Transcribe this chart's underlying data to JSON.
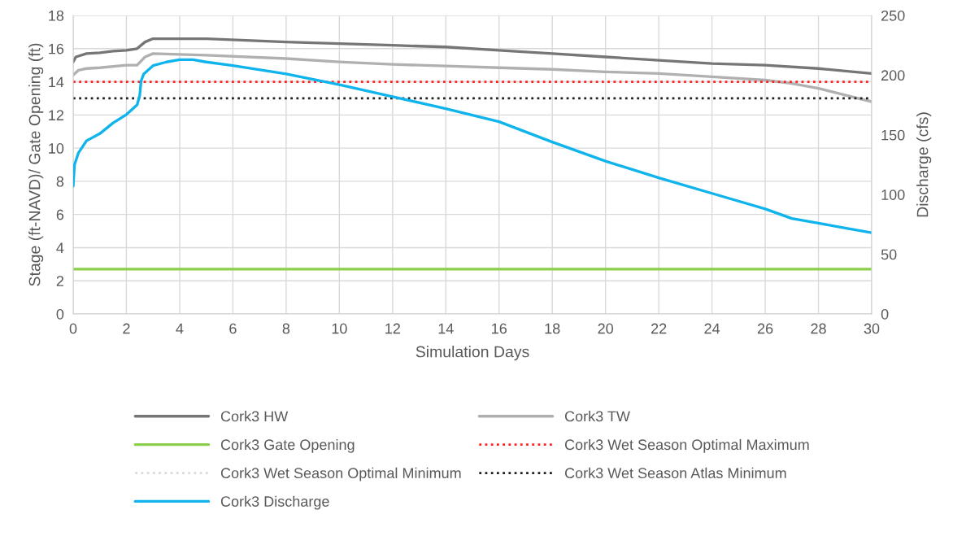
{
  "chart_data": {
    "type": "line",
    "xlabel": "Simulation Days",
    "ylabel": "Stage (ft-NAVD)/ Gate Opening (ft)",
    "y2label": "Discharge (cfs)",
    "xlim": [
      0,
      30
    ],
    "xticks": [
      0,
      2,
      4,
      6,
      8,
      10,
      12,
      14,
      16,
      18,
      20,
      22,
      24,
      26,
      28,
      30
    ],
    "ylim": [
      0,
      18
    ],
    "yticks": [
      0,
      2,
      4,
      6,
      8,
      10,
      12,
      14,
      16,
      18
    ],
    "y2lim": [
      0,
      250
    ],
    "y2ticks": [
      0,
      50,
      100,
      150,
      200,
      250
    ],
    "grid": true,
    "legend": "bottom",
    "marker": "none",
    "series": [
      {
        "name": "Cork3 HW",
        "color": "#767676",
        "line_style": "solid",
        "x": [
          0,
          0.1,
          0.5,
          1,
          1.5,
          2,
          2.4,
          2.7,
          3,
          5,
          8,
          10,
          12,
          14,
          16,
          18,
          20,
          22,
          24,
          26,
          28,
          30
        ],
        "values": [
          15.2,
          15.5,
          15.7,
          15.75,
          15.85,
          15.9,
          16.0,
          16.4,
          16.6,
          16.6,
          16.4,
          16.3,
          16.2,
          16.1,
          15.9,
          15.7,
          15.5,
          15.3,
          15.1,
          15.0,
          14.8,
          14.5
        ]
      },
      {
        "name": "Cork3 TW",
        "color": "#b0b0b0",
        "line_style": "solid",
        "x": [
          0,
          0.2,
          0.5,
          1,
          2,
          2.4,
          2.7,
          3,
          5,
          8,
          10,
          12,
          14,
          16,
          18,
          20,
          22,
          24,
          26,
          27,
          28,
          29,
          30
        ],
        "values": [
          14.4,
          14.7,
          14.8,
          14.85,
          15.0,
          15.0,
          15.5,
          15.7,
          15.6,
          15.4,
          15.2,
          15.05,
          14.95,
          14.85,
          14.75,
          14.6,
          14.5,
          14.3,
          14.1,
          13.9,
          13.6,
          13.2,
          12.8
        ]
      },
      {
        "name": "Cork3 Gate Opening",
        "color": "#8ccf4d",
        "line_style": "solid",
        "x": [
          0,
          30
        ],
        "values": [
          2.7,
          2.7
        ]
      },
      {
        "name": "Cork3 Wet Season Optimal Maximum",
        "color": "#ff2020",
        "line_style": "dotted",
        "x": [
          0,
          30
        ],
        "values": [
          14,
          14
        ]
      },
      {
        "name": "Cork3 Wet Season Optimal Minimum",
        "color": "#d9d9d9",
        "line_style": "dotted"
      },
      {
        "name": "Cork3 Wet Season Atlas Minimum",
        "color": "#202020",
        "line_style": "dotted",
        "x": [
          0,
          30
        ],
        "values": [
          13,
          13
        ]
      },
      {
        "name": "Cork3 Discharge",
        "color": "#10b4ec",
        "line_style": "solid",
        "axis": "y2",
        "x": [
          0,
          0.05,
          0.2,
          0.5,
          1,
          1.5,
          2,
          2.4,
          2.5,
          2.55,
          2.65,
          3,
          3.5,
          4,
          4.5,
          5,
          6,
          8,
          10,
          12,
          14,
          16,
          18,
          20,
          22,
          24,
          26,
          27,
          28,
          29,
          30
        ],
        "values": [
          107,
          125,
          135,
          145,
          151,
          160,
          167,
          175,
          183,
          195,
          201,
          208,
          211,
          213,
          213,
          211,
          208,
          201,
          192,
          182,
          172,
          161,
          144,
          128,
          114,
          101,
          88,
          80,
          76,
          72,
          68
        ]
      }
    ]
  }
}
